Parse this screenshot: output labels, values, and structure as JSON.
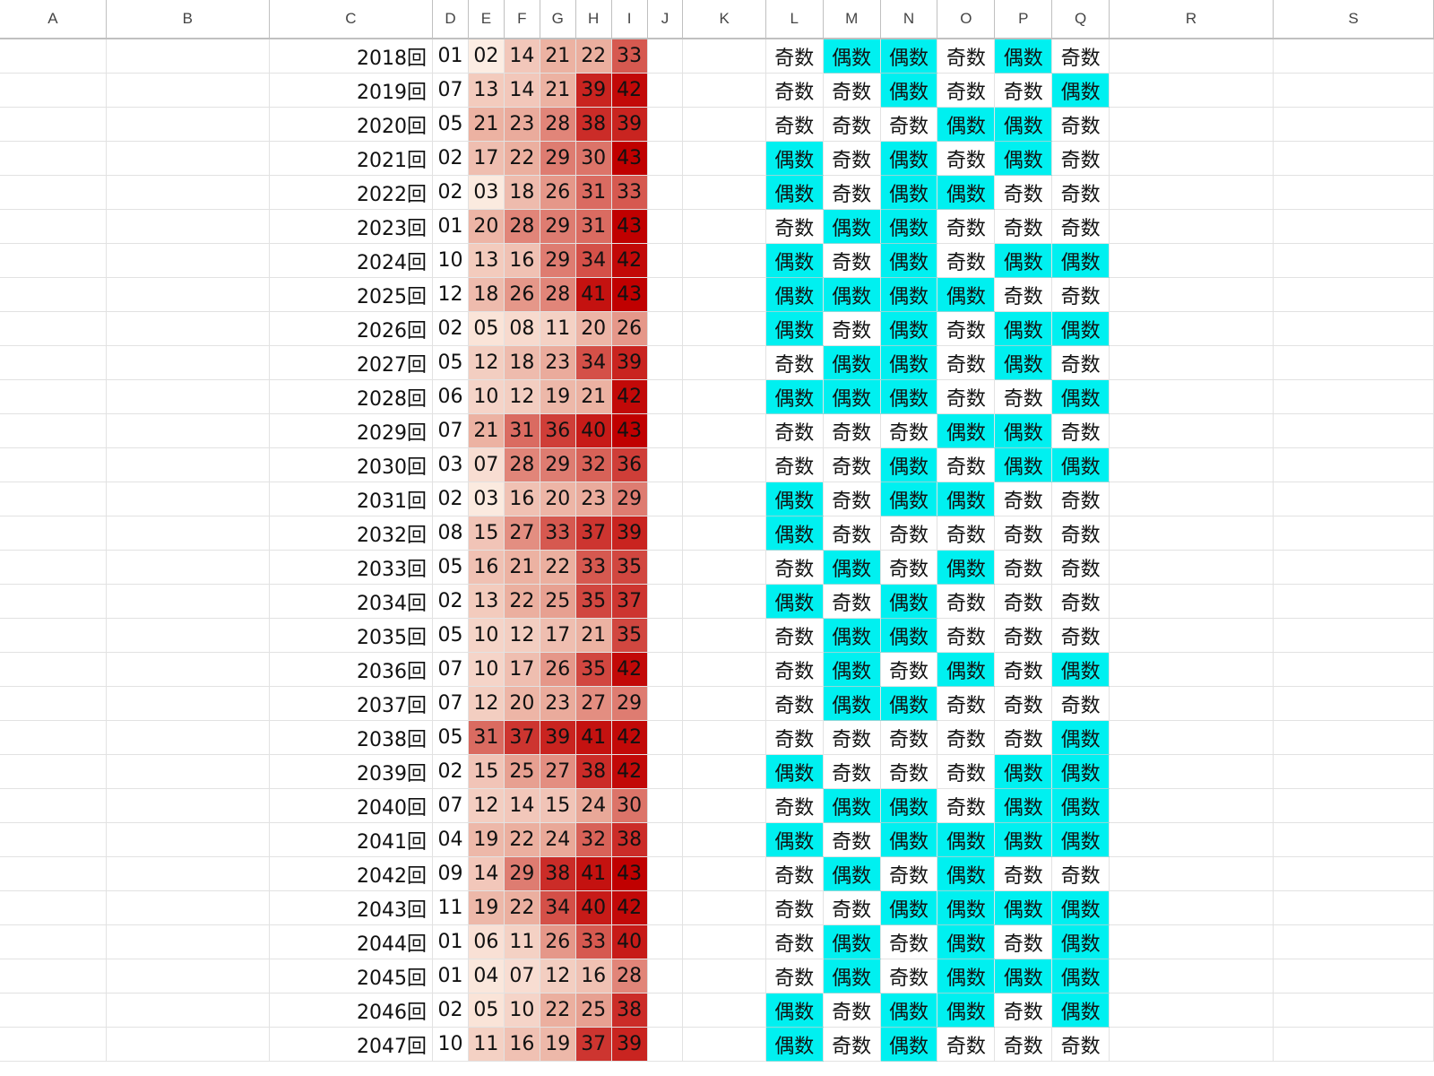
{
  "columns": [
    "A",
    "B",
    "C",
    "D",
    "E",
    "F",
    "G",
    "H",
    "I",
    "J",
    "K",
    "L",
    "M",
    "N",
    "O",
    "P",
    "Q",
    "R",
    "S"
  ],
  "parity_labels": {
    "odd": "奇数",
    "even": "偶数"
  },
  "heat_scale": {
    "low": "#fdf0e6",
    "mid": "#e9a898",
    "high": "#c00000",
    "min": 1,
    "max": 43
  },
  "parity_colors": {
    "even": "#00f0f0",
    "odd": "#ffffff"
  },
  "rows": [
    {
      "round": "2018回",
      "nums": [
        "01",
        "02",
        "14",
        "21",
        "22",
        "33"
      ]
    },
    {
      "round": "2019回",
      "nums": [
        "07",
        "13",
        "14",
        "21",
        "39",
        "42"
      ]
    },
    {
      "round": "2020回",
      "nums": [
        "05",
        "21",
        "23",
        "28",
        "38",
        "39"
      ]
    },
    {
      "round": "2021回",
      "nums": [
        "02",
        "17",
        "22",
        "29",
        "30",
        "43"
      ]
    },
    {
      "round": "2022回",
      "nums": [
        "02",
        "03",
        "18",
        "26",
        "31",
        "33"
      ]
    },
    {
      "round": "2023回",
      "nums": [
        "01",
        "20",
        "28",
        "29",
        "31",
        "43"
      ]
    },
    {
      "round": "2024回",
      "nums": [
        "10",
        "13",
        "16",
        "29",
        "34",
        "42"
      ]
    },
    {
      "round": "2025回",
      "nums": [
        "12",
        "18",
        "26",
        "28",
        "41",
        "43"
      ]
    },
    {
      "round": "2026回",
      "nums": [
        "02",
        "05",
        "08",
        "11",
        "20",
        "26"
      ]
    },
    {
      "round": "2027回",
      "nums": [
        "05",
        "12",
        "18",
        "23",
        "34",
        "39"
      ]
    },
    {
      "round": "2028回",
      "nums": [
        "06",
        "10",
        "12",
        "19",
        "21",
        "42"
      ]
    },
    {
      "round": "2029回",
      "nums": [
        "07",
        "21",
        "31",
        "36",
        "40",
        "43"
      ]
    },
    {
      "round": "2030回",
      "nums": [
        "03",
        "07",
        "28",
        "29",
        "32",
        "36"
      ]
    },
    {
      "round": "2031回",
      "nums": [
        "02",
        "03",
        "16",
        "20",
        "23",
        "29"
      ]
    },
    {
      "round": "2032回",
      "nums": [
        "08",
        "15",
        "27",
        "33",
        "37",
        "39"
      ]
    },
    {
      "round": "2033回",
      "nums": [
        "05",
        "16",
        "21",
        "22",
        "33",
        "35"
      ]
    },
    {
      "round": "2034回",
      "nums": [
        "02",
        "13",
        "22",
        "25",
        "35",
        "37"
      ]
    },
    {
      "round": "2035回",
      "nums": [
        "05",
        "10",
        "12",
        "17",
        "21",
        "35"
      ]
    },
    {
      "round": "2036回",
      "nums": [
        "07",
        "10",
        "17",
        "26",
        "35",
        "42"
      ]
    },
    {
      "round": "2037回",
      "nums": [
        "07",
        "12",
        "20",
        "23",
        "27",
        "29"
      ]
    },
    {
      "round": "2038回",
      "nums": [
        "05",
        "31",
        "37",
        "39",
        "41",
        "42"
      ]
    },
    {
      "round": "2039回",
      "nums": [
        "02",
        "15",
        "25",
        "27",
        "38",
        "42"
      ]
    },
    {
      "round": "2040回",
      "nums": [
        "07",
        "12",
        "14",
        "15",
        "24",
        "30"
      ]
    },
    {
      "round": "2041回",
      "nums": [
        "04",
        "19",
        "22",
        "24",
        "32",
        "38"
      ]
    },
    {
      "round": "2042回",
      "nums": [
        "09",
        "14",
        "29",
        "38",
        "41",
        "43"
      ]
    },
    {
      "round": "2043回",
      "nums": [
        "11",
        "19",
        "22",
        "34",
        "40",
        "42"
      ]
    },
    {
      "round": "2044回",
      "nums": [
        "01",
        "06",
        "11",
        "26",
        "33",
        "40"
      ]
    },
    {
      "round": "2045回",
      "nums": [
        "01",
        "04",
        "07",
        "12",
        "16",
        "28"
      ]
    },
    {
      "round": "2046回",
      "nums": [
        "02",
        "05",
        "10",
        "22",
        "25",
        "38"
      ]
    },
    {
      "round": "2047回",
      "nums": [
        "10",
        "11",
        "16",
        "19",
        "37",
        "39"
      ]
    }
  ]
}
